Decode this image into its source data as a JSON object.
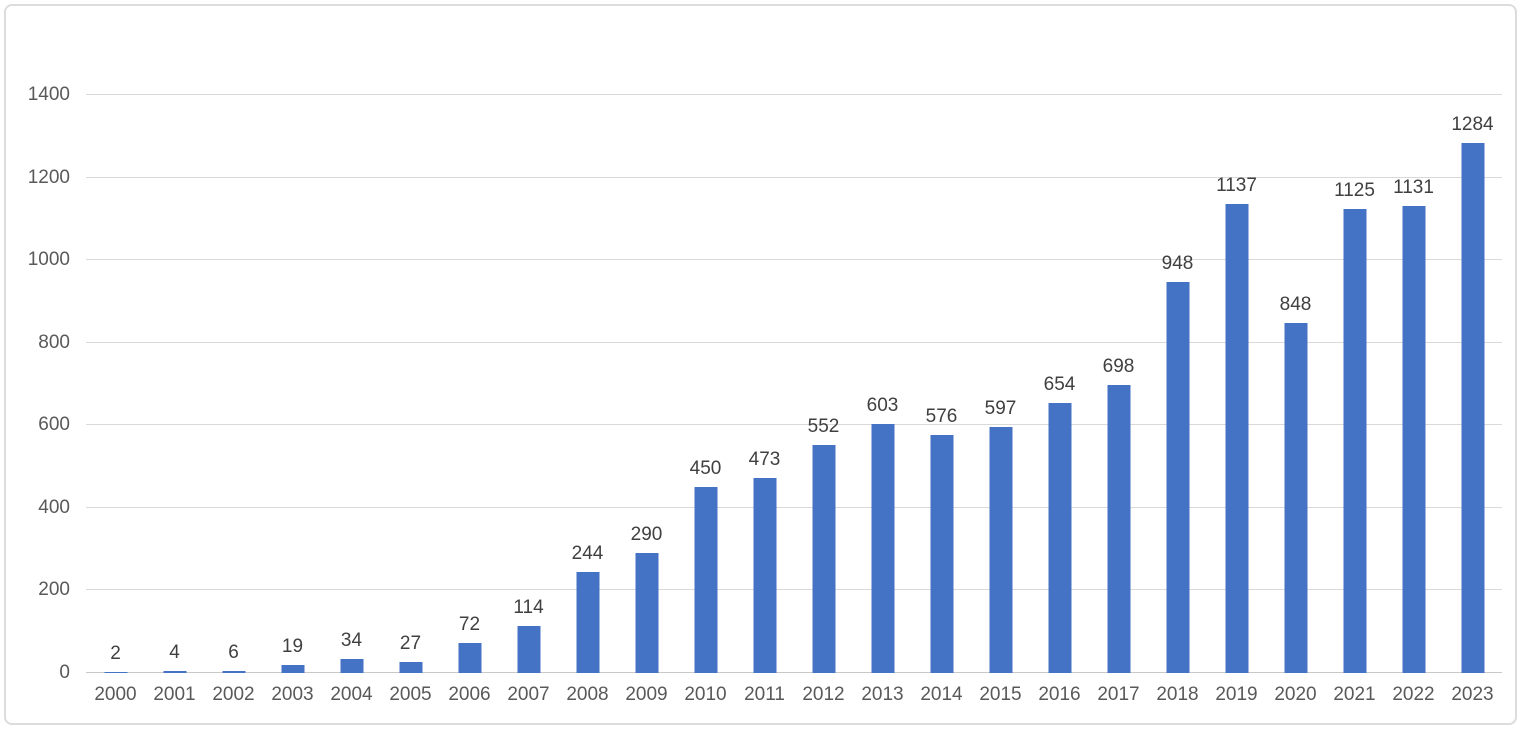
{
  "chart_data": {
    "type": "bar",
    "title": "",
    "xlabel": "",
    "ylabel": "",
    "categories": [
      "2000",
      "2001",
      "2002",
      "2003",
      "2004",
      "2005",
      "2006",
      "2007",
      "2008",
      "2009",
      "2010",
      "2011",
      "2012",
      "2013",
      "2014",
      "2015",
      "2016",
      "2017",
      "2018",
      "2019",
      "2020",
      "2021",
      "2022",
      "2023"
    ],
    "values": [
      2,
      4,
      6,
      19,
      34,
      27,
      72,
      114,
      244,
      290,
      450,
      473,
      552,
      603,
      576,
      597,
      654,
      698,
      948,
      1137,
      848,
      1125,
      1131,
      1284
    ],
    "ylim": [
      0,
      1400
    ],
    "yticks": [
      0,
      200,
      400,
      600,
      800,
      1000,
      1200,
      1400
    ],
    "grid": true,
    "data_labels": true,
    "legend": "none",
    "colors": {
      "bar": "#4472c4",
      "gridline": "#d9d9d9",
      "axis_line": "#c9c9c9",
      "tick_label": "#595959",
      "data_label": "#404040",
      "frame_border": "#dcdcdc",
      "background": "#ffffff"
    }
  }
}
